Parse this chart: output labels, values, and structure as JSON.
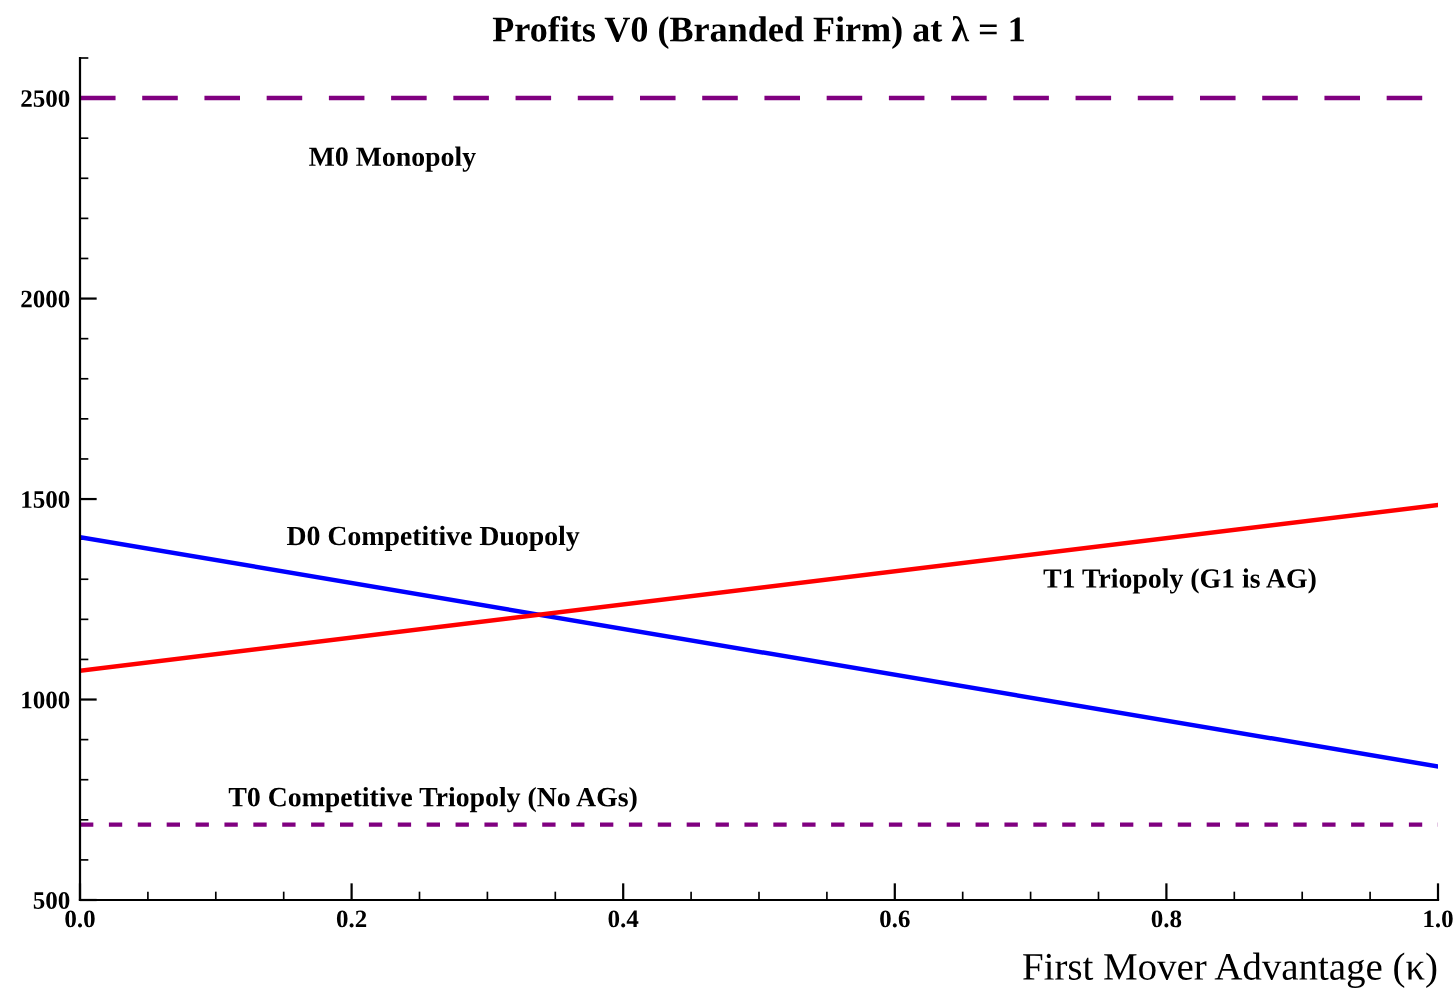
{
  "chart_data": {
    "type": "line",
    "title": "Profits V0 (Branded Firm) at λ = 1",
    "xlabel": "First Mover Advantage (κ)",
    "xlim": [
      0,
      1
    ],
    "xticks": [
      {
        "value": 0,
        "label": "0.0"
      },
      0.2,
      0.4,
      0.6,
      0.8,
      {
        "value": 1,
        "label": "1.0"
      }
    ],
    "ylim": [
      500,
      2600
    ],
    "yticks": [
      500,
      1000,
      1500,
      2000,
      2500
    ],
    "x": [
      0,
      1
    ],
    "series": [
      {
        "name": "D0 Competitive Duopoly",
        "color": "#0000ff",
        "values": [
          1405,
          833
        ]
      },
      {
        "name": "T1 Triopoly (G1 is AG)",
        "color": "#ff0000",
        "values": [
          1072,
          1485
        ]
      }
    ],
    "ref_lines": [
      {
        "axis": "y",
        "value": 2500,
        "label": "M0 Monopoly",
        "color": "#800080",
        "line_style": "dashed"
      },
      {
        "axis": "y",
        "value": 688,
        "label": "T0 Competitive Triopoly (No AGs)",
        "color": "#800080",
        "line_style": "dotted"
      }
    ],
    "grid": false,
    "legend": false,
    "marker": "none",
    "line_style": "solid"
  }
}
